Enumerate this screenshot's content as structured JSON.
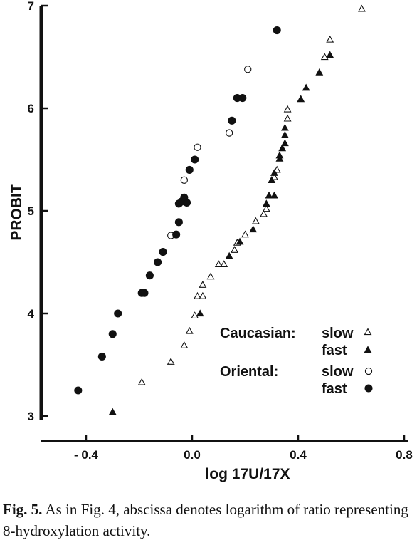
{
  "chart_data": {
    "type": "scatter",
    "xlabel": "log 17U/17X",
    "ylabel": "PROBIT",
    "xlim": [
      -0.58,
      0.86
    ],
    "ylim": [
      2.9,
      7.05
    ],
    "x_ticks": [
      -0.4,
      0.0,
      0.4,
      0.8
    ],
    "x_tick_labels": [
      "- 0.4",
      "0.0",
      "0.4",
      "0.8"
    ],
    "y_ticks": [
      3,
      4,
      5,
      6,
      7
    ],
    "y_tick_labels": [
      "3",
      "4",
      "5",
      "6",
      "7"
    ],
    "grid": false,
    "legend": {
      "placement": "lower-right",
      "groups": [
        {
          "label": "Caucasian:",
          "entries": [
            {
              "label": "slow",
              "series": "caucasian_slow"
            },
            {
              "label": "fast",
              "series": "caucasian_fast"
            }
          ]
        },
        {
          "label": "Oriental:",
          "entries": [
            {
              "label": "slow",
              "series": "oriental_slow"
            },
            {
              "label": "fast",
              "series": "oriental_fast"
            }
          ]
        }
      ]
    },
    "series": [
      {
        "key": "caucasian_slow",
        "marker": "triangle-open",
        "points": [
          [
            -0.19,
            3.33
          ],
          [
            -0.08,
            3.53
          ],
          [
            -0.03,
            3.69
          ],
          [
            -0.01,
            3.83
          ],
          [
            0.01,
            3.98
          ],
          [
            0.02,
            4.17
          ],
          [
            0.04,
            4.17
          ],
          [
            0.04,
            4.28
          ],
          [
            0.07,
            4.36
          ],
          [
            0.1,
            4.48
          ],
          [
            0.12,
            4.48
          ],
          [
            0.16,
            4.62
          ],
          [
            0.17,
            4.69
          ],
          [
            0.2,
            4.77
          ],
          [
            0.24,
            4.9
          ],
          [
            0.27,
            4.97
          ],
          [
            0.28,
            5.02
          ],
          [
            0.31,
            5.33
          ],
          [
            0.32,
            5.4
          ],
          [
            0.36,
            5.9
          ],
          [
            0.36,
            5.99
          ],
          [
            0.5,
            6.5
          ],
          [
            0.52,
            6.67
          ],
          [
            0.64,
            6.97
          ]
        ]
      },
      {
        "key": "caucasian_fast",
        "marker": "triangle-filled",
        "points": [
          [
            -0.3,
            3.04
          ],
          [
            0.03,
            4.0
          ],
          [
            0.14,
            4.56
          ],
          [
            0.18,
            4.7
          ],
          [
            0.23,
            4.82
          ],
          [
            0.28,
            5.07
          ],
          [
            0.29,
            5.15
          ],
          [
            0.31,
            5.15
          ],
          [
            0.3,
            5.3
          ],
          [
            0.31,
            5.37
          ],
          [
            0.33,
            5.51
          ],
          [
            0.33,
            5.54
          ],
          [
            0.34,
            5.61
          ],
          [
            0.35,
            5.66
          ],
          [
            0.35,
            5.74
          ],
          [
            0.35,
            5.81
          ],
          [
            0.41,
            6.09
          ],
          [
            0.43,
            6.2
          ],
          [
            0.48,
            6.35
          ],
          [
            0.52,
            6.52
          ]
        ]
      },
      {
        "key": "oriental_slow",
        "marker": "circle-open",
        "points": [
          [
            -0.08,
            4.76
          ],
          [
            -0.03,
            5.3
          ],
          [
            0.02,
            5.62
          ],
          [
            0.14,
            5.76
          ],
          [
            0.21,
            6.38
          ]
        ]
      },
      {
        "key": "oriental_fast",
        "marker": "circle-filled",
        "points": [
          [
            -0.43,
            3.25
          ],
          [
            -0.34,
            3.58
          ],
          [
            -0.3,
            3.8
          ],
          [
            -0.28,
            4.0
          ],
          [
            -0.19,
            4.2
          ],
          [
            -0.18,
            4.2
          ],
          [
            -0.16,
            4.37
          ],
          [
            -0.13,
            4.5
          ],
          [
            -0.11,
            4.6
          ],
          [
            -0.06,
            4.77
          ],
          [
            -0.05,
            4.89
          ],
          [
            -0.05,
            5.07
          ],
          [
            -0.04,
            5.09
          ],
          [
            -0.03,
            5.13
          ],
          [
            -0.02,
            5.08
          ],
          [
            -0.01,
            5.4
          ],
          [
            0.01,
            5.5
          ],
          [
            0.15,
            5.88
          ],
          [
            0.17,
            6.1
          ],
          [
            0.19,
            6.1
          ],
          [
            0.32,
            6.76
          ]
        ]
      }
    ]
  },
  "caption": {
    "label": "Fig. 5.",
    "text": " As in Fig. 4, abscissa denotes logarithm of ratio representing 8-hydroxylation activity."
  }
}
